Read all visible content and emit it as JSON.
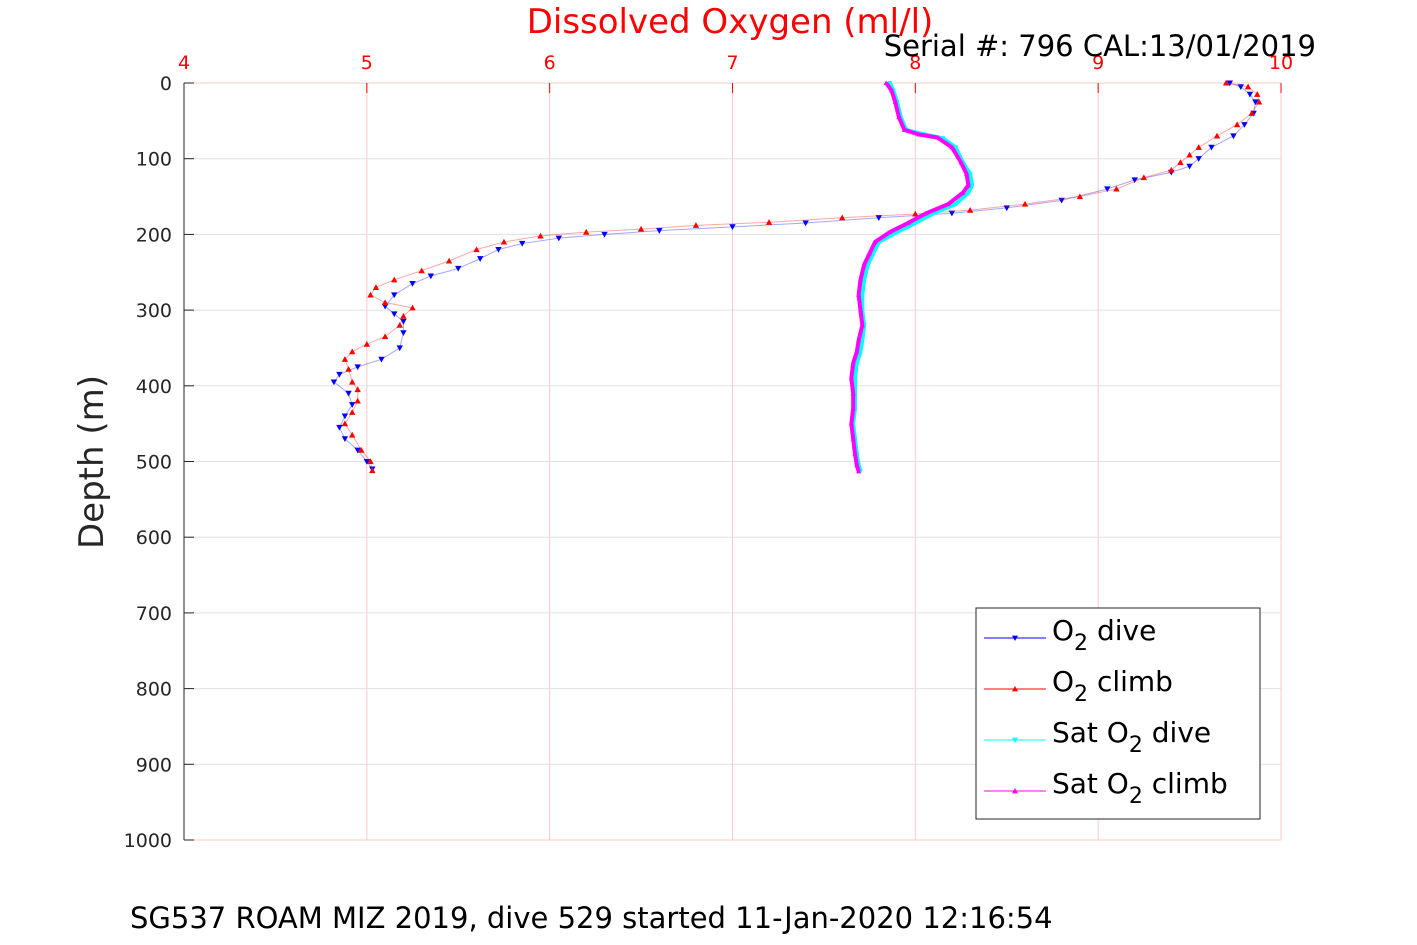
{
  "chart_data": {
    "type": "scatter",
    "title": "Dissolved Oxygen (ml/l)",
    "serial_text": "Serial #: 796  CAL:13/01/2019",
    "footer": "SG537 ROAM MIZ 2019, dive 529 started 11-Jan-2020 12:16:54",
    "xlabel": "",
    "ylabel": "Depth (m)",
    "x_axis_location": "top",
    "y_reversed": true,
    "xlim": [
      4,
      10
    ],
    "ylim": [
      0,
      1000
    ],
    "xticks": [
      "4",
      "5",
      "6",
      "7",
      "8",
      "9",
      "10"
    ],
    "yticks": [
      "0",
      "100",
      "200",
      "300",
      "400",
      "500",
      "600",
      "700",
      "800",
      "900",
      "1000"
    ],
    "grid": true,
    "legend_position": "bottom-right",
    "colors": {
      "title": "#ff0000",
      "x_ticks": "#ff0000",
      "grid": "#ffc8c8",
      "axis": "#262626"
    },
    "series": [
      {
        "name": "O2 dive",
        "name_parts": [
          "O",
          "2",
          " dive"
        ],
        "color": "#0000ff",
        "marker": "triangle-down",
        "points": [
          [
            9.72,
            0
          ],
          [
            9.78,
            5
          ],
          [
            9.83,
            15
          ],
          [
            9.86,
            25
          ],
          [
            9.85,
            40
          ],
          [
            9.8,
            55
          ],
          [
            9.74,
            70
          ],
          [
            9.62,
            85
          ],
          [
            9.55,
            100
          ],
          [
            9.5,
            110
          ],
          [
            9.4,
            118
          ],
          [
            9.2,
            128
          ],
          [
            9.05,
            140
          ],
          [
            8.8,
            155
          ],
          [
            8.5,
            165
          ],
          [
            8.2,
            172
          ],
          [
            7.8,
            178
          ],
          [
            7.4,
            185
          ],
          [
            7.0,
            190
          ],
          [
            6.6,
            195
          ],
          [
            6.3,
            200
          ],
          [
            6.05,
            205
          ],
          [
            5.85,
            212
          ],
          [
            5.72,
            220
          ],
          [
            5.62,
            232
          ],
          [
            5.5,
            245
          ],
          [
            5.35,
            255
          ],
          [
            5.25,
            265
          ],
          [
            5.15,
            280
          ],
          [
            5.1,
            295
          ],
          [
            5.15,
            305
          ],
          [
            5.2,
            315
          ],
          [
            5.2,
            330
          ],
          [
            5.18,
            350
          ],
          [
            5.08,
            365
          ],
          [
            4.95,
            375
          ],
          [
            4.85,
            385
          ],
          [
            4.82,
            395
          ],
          [
            4.9,
            410
          ],
          [
            4.92,
            425
          ],
          [
            4.88,
            440
          ],
          [
            4.85,
            455
          ],
          [
            4.88,
            470
          ],
          [
            4.95,
            485
          ],
          [
            5.0,
            500
          ],
          [
            5.03,
            510
          ]
        ]
      },
      {
        "name": "O2 climb",
        "name_parts": [
          "O",
          "2",
          " climb"
        ],
        "color": "#ff0000",
        "marker": "triangle-up",
        "points": [
          [
            9.7,
            0
          ],
          [
            9.82,
            5
          ],
          [
            9.87,
            15
          ],
          [
            9.88,
            25
          ],
          [
            9.84,
            40
          ],
          [
            9.76,
            55
          ],
          [
            9.65,
            70
          ],
          [
            9.55,
            85
          ],
          [
            9.5,
            95
          ],
          [
            9.45,
            105
          ],
          [
            9.4,
            115
          ],
          [
            9.25,
            125
          ],
          [
            9.1,
            140
          ],
          [
            8.9,
            150
          ],
          [
            8.6,
            160
          ],
          [
            8.3,
            168
          ],
          [
            8.0,
            173
          ],
          [
            7.6,
            178
          ],
          [
            7.2,
            184
          ],
          [
            6.8,
            188
          ],
          [
            6.5,
            193
          ],
          [
            6.2,
            197
          ],
          [
            5.95,
            202
          ],
          [
            5.75,
            210
          ],
          [
            5.6,
            220
          ],
          [
            5.45,
            235
          ],
          [
            5.3,
            248
          ],
          [
            5.15,
            260
          ],
          [
            5.05,
            270
          ],
          [
            5.02,
            280
          ],
          [
            5.1,
            290
          ],
          [
            5.25,
            297
          ],
          [
            5.2,
            308
          ],
          [
            5.18,
            320
          ],
          [
            5.1,
            335
          ],
          [
            5.0,
            345
          ],
          [
            4.92,
            355
          ],
          [
            4.88,
            365
          ],
          [
            4.9,
            378
          ],
          [
            4.92,
            395
          ],
          [
            4.95,
            405
          ],
          [
            4.95,
            420
          ],
          [
            4.92,
            435
          ],
          [
            4.88,
            450
          ],
          [
            4.92,
            465
          ],
          [
            4.97,
            485
          ],
          [
            5.02,
            500
          ],
          [
            5.03,
            512
          ]
        ]
      },
      {
        "name": "Sat O2 dive",
        "name_parts": [
          "Sat O",
          "2",
          " dive"
        ],
        "color": "#00ffff",
        "marker": "triangle-down",
        "points": [
          [
            7.86,
            0
          ],
          [
            7.88,
            10
          ],
          [
            7.9,
            25
          ],
          [
            7.92,
            45
          ],
          [
            7.95,
            62
          ],
          [
            8.05,
            68
          ],
          [
            8.15,
            73
          ],
          [
            8.22,
            85
          ],
          [
            8.26,
            105
          ],
          [
            8.3,
            120
          ],
          [
            8.31,
            135
          ],
          [
            8.29,
            145
          ],
          [
            8.22,
            160
          ],
          [
            8.1,
            172
          ],
          [
            8.0,
            185
          ],
          [
            7.9,
            197
          ],
          [
            7.8,
            210
          ],
          [
            7.77,
            225
          ],
          [
            7.74,
            240
          ],
          [
            7.72,
            260
          ],
          [
            7.71,
            280
          ],
          [
            7.71,
            300
          ],
          [
            7.72,
            320
          ],
          [
            7.71,
            340
          ],
          [
            7.7,
            355
          ],
          [
            7.68,
            370
          ],
          [
            7.67,
            390
          ],
          [
            7.67,
            410
          ],
          [
            7.67,
            430
          ],
          [
            7.66,
            450
          ],
          [
            7.67,
            470
          ],
          [
            7.68,
            490
          ],
          [
            7.69,
            505
          ],
          [
            7.7,
            513
          ]
        ]
      },
      {
        "name": "Sat O2 climb",
        "name_parts": [
          "Sat O",
          "2",
          " climb"
        ],
        "color": "#ff00ff",
        "marker": "triangle-up",
        "points": [
          [
            7.84,
            0
          ],
          [
            7.87,
            10
          ],
          [
            7.89,
            25
          ],
          [
            7.91,
            45
          ],
          [
            7.94,
            62
          ],
          [
            8.02,
            68
          ],
          [
            8.12,
            72
          ],
          [
            8.2,
            85
          ],
          [
            8.25,
            105
          ],
          [
            8.28,
            120
          ],
          [
            8.29,
            135
          ],
          [
            8.26,
            145
          ],
          [
            8.18,
            160
          ],
          [
            8.06,
            172
          ],
          [
            7.96,
            185
          ],
          [
            7.86,
            197
          ],
          [
            7.78,
            210
          ],
          [
            7.75,
            225
          ],
          [
            7.72,
            240
          ],
          [
            7.7,
            260
          ],
          [
            7.69,
            280
          ],
          [
            7.7,
            300
          ],
          [
            7.71,
            320
          ],
          [
            7.69,
            340
          ],
          [
            7.68,
            355
          ],
          [
            7.66,
            370
          ],
          [
            7.65,
            390
          ],
          [
            7.66,
            410
          ],
          [
            7.66,
            430
          ],
          [
            7.65,
            450
          ],
          [
            7.66,
            470
          ],
          [
            7.67,
            490
          ],
          [
            7.68,
            505
          ],
          [
            7.69,
            513
          ]
        ]
      }
    ]
  }
}
